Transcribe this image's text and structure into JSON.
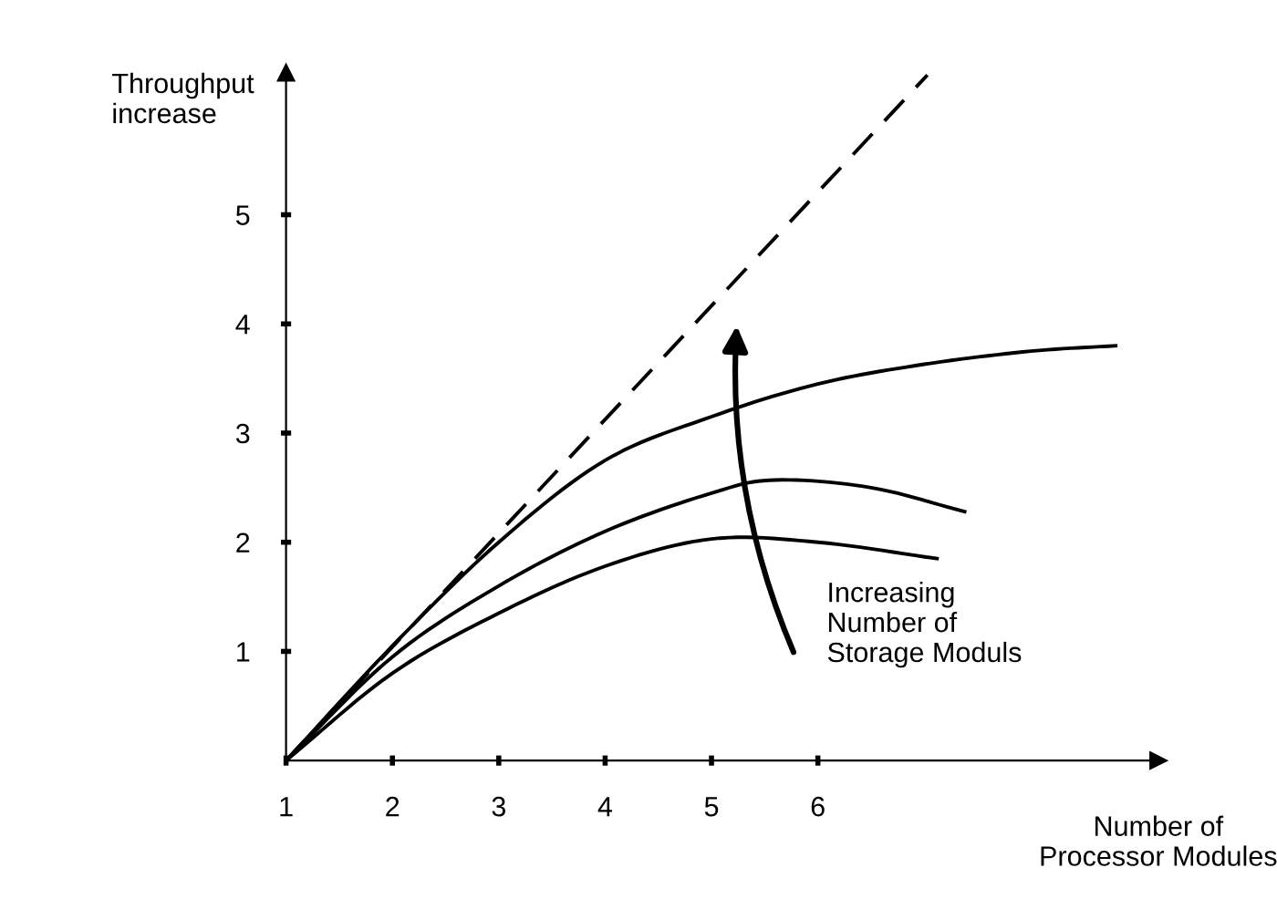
{
  "chart_data": {
    "type": "line",
    "xlabel": "Number of\nProcessor Modules",
    "ylabel": "Throughput\nincrease",
    "xlim": [
      1,
      9.2
    ],
    "ylim": [
      0,
      6.3
    ],
    "xticks": [
      1,
      2,
      3,
      4,
      5,
      6
    ],
    "yticks": [
      1,
      2,
      3,
      4,
      5
    ],
    "grid": false,
    "legend": false,
    "marker": "none",
    "series": [
      {
        "color": "#000000",
        "line_style": "dashed",
        "x": [
          1,
          7.03
        ],
        "values": [
          0,
          6.28
        ]
      },
      {
        "color": "#000000",
        "line_style": "solid",
        "x": [
          1,
          2,
          3,
          4,
          5,
          6,
          7,
          8,
          8.8
        ],
        "values": [
          0,
          1.05,
          2.0,
          2.75,
          3.15,
          3.45,
          3.63,
          3.75,
          3.8
        ]
      },
      {
        "color": "#000000",
        "line_style": "solid",
        "x": [
          1,
          2,
          3,
          4,
          5,
          5.6,
          6.5,
          7.38
        ],
        "values": [
          0,
          0.95,
          1.6,
          2.1,
          2.45,
          2.57,
          2.5,
          2.28
        ]
      },
      {
        "color": "#000000",
        "line_style": "solid",
        "x": [
          1,
          2,
          3,
          4,
          5,
          6,
          7.12
        ],
        "values": [
          0,
          0.8,
          1.35,
          1.78,
          2.03,
          2.0,
          1.85
        ]
      }
    ],
    "annotations": [
      "Increasing\nNumber of\nStorage Moduls"
    ]
  }
}
